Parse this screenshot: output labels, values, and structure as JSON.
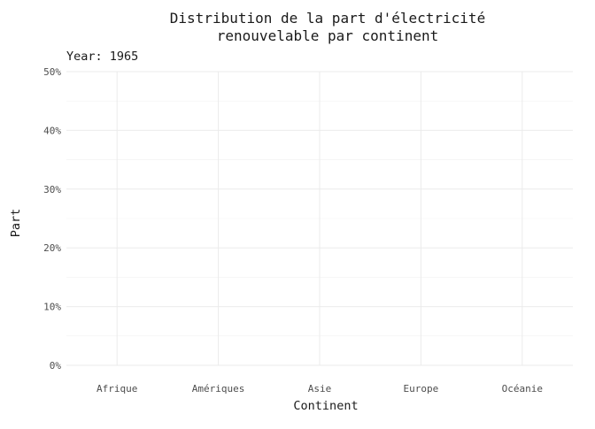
{
  "chart_data": {
    "type": "bar",
    "title_line1": "Distribution de la part d'électricité",
    "title_line2": "renouvelable par continent",
    "subtitle": "Year: 1965",
    "xlabel": "Continent",
    "ylabel": "Part",
    "categories": [
      "Afrique",
      "Amériques",
      "Asie",
      "Europe",
      "Océanie"
    ],
    "values": [
      null,
      null,
      null,
      null,
      null
    ],
    "ylim": [
      0,
      0.5
    ],
    "y_ticks": [
      0,
      0.1,
      0.2,
      0.3,
      0.4,
      0.5
    ],
    "y_tick_labels": [
      "0%",
      "10%",
      "20%",
      "30%",
      "40%",
      "50%"
    ],
    "grid": true,
    "legend": "none"
  }
}
